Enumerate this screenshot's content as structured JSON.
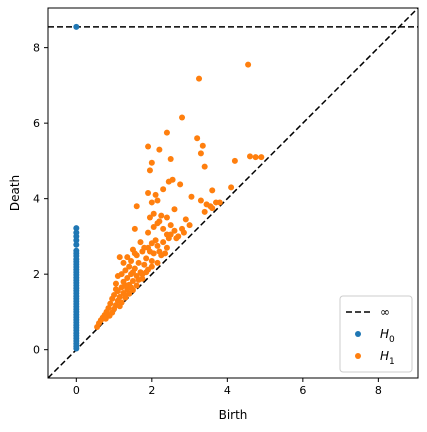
{
  "chart_data": {
    "type": "scatter",
    "title": "",
    "xlabel": "Birth",
    "ylabel": "Death",
    "xlim": [
      -0.75,
      9.05
    ],
    "ylim": [
      -0.75,
      9.05
    ],
    "xticks": [
      0,
      2,
      4,
      6,
      8
    ],
    "yticks": [
      0,
      2,
      4,
      6,
      8
    ],
    "xtick_labels": [
      "0",
      "2",
      "4",
      "6",
      "8"
    ],
    "ytick_labels": [
      "0",
      "2",
      "4",
      "6",
      "8"
    ],
    "grid": false,
    "legend_position": "bottom-right",
    "infinity_death": 8.55,
    "legend": [
      {
        "label": "∞",
        "style": "dashed-line",
        "color": "#000000"
      },
      {
        "label": "H",
        "sub": "0",
        "style": "marker",
        "color": "#1f77b4"
      },
      {
        "label": "H",
        "sub": "1",
        "style": "marker",
        "color": "#ff7f0e"
      }
    ],
    "series": [
      {
        "color": "#1f77b4",
        "points": [
          [
            0,
            8.55
          ],
          [
            0,
            3.22
          ],
          [
            0,
            3.1
          ],
          [
            0,
            3.0
          ],
          [
            0,
            2.9
          ],
          [
            0,
            2.78
          ],
          [
            0,
            2.62
          ],
          [
            0,
            2.55
          ],
          [
            0,
            2.48
          ],
          [
            0,
            2.4
          ],
          [
            0,
            2.33
          ],
          [
            0,
            2.26
          ],
          [
            0,
            2.19
          ],
          [
            0,
            2.12
          ],
          [
            0,
            2.05
          ],
          [
            0,
            1.98
          ],
          [
            0,
            1.91
          ],
          [
            0,
            1.84
          ],
          [
            0,
            1.77
          ],
          [
            0,
            1.7
          ],
          [
            0,
            1.63
          ],
          [
            0,
            1.56
          ],
          [
            0,
            1.49
          ],
          [
            0,
            1.42
          ],
          [
            0,
            1.35
          ],
          [
            0,
            1.28
          ],
          [
            0,
            1.21
          ],
          [
            0,
            1.14
          ],
          [
            0,
            1.07
          ],
          [
            0,
            1.0
          ],
          [
            0,
            0.93
          ],
          [
            0,
            0.86
          ],
          [
            0,
            0.79
          ],
          [
            0,
            0.72
          ],
          [
            0,
            0.65
          ],
          [
            0,
            0.58
          ],
          [
            0,
            0.51
          ],
          [
            0,
            0.44
          ],
          [
            0,
            0.37
          ],
          [
            0,
            0.3
          ],
          [
            0,
            0.23
          ],
          [
            0,
            0.16
          ],
          [
            0,
            0.09
          ],
          [
            0,
            0.03
          ]
        ]
      },
      {
        "color": "#ff7f0e",
        "points": [
          [
            4.55,
            7.55
          ],
          [
            3.25,
            7.18
          ],
          [
            2.8,
            6.15
          ],
          [
            2.4,
            5.75
          ],
          [
            3.2,
            5.6
          ],
          [
            3.35,
            5.4
          ],
          [
            1.9,
            5.38
          ],
          [
            2.2,
            5.3
          ],
          [
            3.3,
            5.2
          ],
          [
            2.5,
            5.05
          ],
          [
            4.2,
            5.0
          ],
          [
            2.0,
            4.95
          ],
          [
            4.6,
            5.12
          ],
          [
            4.75,
            5.1
          ],
          [
            4.9,
            5.1
          ],
          [
            3.4,
            4.85
          ],
          [
            1.95,
            4.75
          ],
          [
            2.55,
            4.5
          ],
          [
            2.45,
            4.45
          ],
          [
            2.75,
            4.38
          ],
          [
            2.3,
            4.25
          ],
          [
            3.6,
            4.22
          ],
          [
            1.9,
            4.15
          ],
          [
            2.1,
            4.1
          ],
          [
            3.05,
            4.05
          ],
          [
            4.1,
            4.3
          ],
          [
            2.15,
            3.95
          ],
          [
            3.3,
            3.95
          ],
          [
            2.0,
            3.9
          ],
          [
            3.45,
            3.85
          ],
          [
            1.6,
            3.8
          ],
          [
            3.55,
            3.8
          ],
          [
            3.7,
            3.9
          ],
          [
            3.8,
            3.9
          ],
          [
            2.6,
            3.72
          ],
          [
            2.05,
            3.6
          ],
          [
            3.4,
            3.65
          ],
          [
            2.25,
            3.55
          ],
          [
            1.95,
            3.5
          ],
          [
            2.2,
            3.4
          ],
          [
            2.4,
            3.5
          ],
          [
            2.9,
            3.45
          ],
          [
            3.6,
            3.75
          ],
          [
            2.15,
            3.35
          ],
          [
            2.5,
            3.3
          ],
          [
            2.05,
            3.25
          ],
          [
            1.55,
            3.2
          ],
          [
            2.3,
            3.2
          ],
          [
            2.6,
            3.15
          ],
          [
            2.8,
            3.2
          ],
          [
            2.4,
            3.05
          ],
          [
            1.9,
            3.1
          ],
          [
            2.45,
            2.95
          ],
          [
            2.65,
            2.95
          ],
          [
            2.1,
            2.9
          ],
          [
            2.3,
            2.85
          ],
          [
            1.7,
            2.85
          ],
          [
            2.0,
            2.82
          ],
          [
            2.15,
            2.75
          ],
          [
            2.4,
            2.7
          ],
          [
            1.9,
            2.7
          ],
          [
            1.5,
            2.65
          ],
          [
            1.75,
            2.6
          ],
          [
            2.05,
            2.55
          ],
          [
            2.25,
            2.5
          ],
          [
            1.15,
            2.45
          ],
          [
            1.6,
            2.5
          ],
          [
            1.85,
            2.42
          ],
          [
            1.45,
            2.35
          ],
          [
            2.0,
            2.35
          ],
          [
            2.15,
            2.3
          ],
          [
            1.65,
            2.3
          ],
          [
            1.8,
            2.25
          ],
          [
            1.4,
            2.2
          ],
          [
            1.55,
            2.15
          ],
          [
            1.9,
            2.12
          ],
          [
            1.3,
            2.1
          ],
          [
            1.7,
            2.05
          ],
          [
            1.45,
            2.0
          ],
          [
            1.2,
            2.0
          ],
          [
            1.6,
            1.95
          ],
          [
            1.35,
            1.9
          ],
          [
            1.75,
            1.88
          ],
          [
            1.5,
            1.82
          ],
          [
            1.25,
            1.8
          ],
          [
            1.05,
            1.75
          ],
          [
            1.4,
            1.72
          ],
          [
            1.6,
            1.7
          ],
          [
            1.2,
            1.65
          ],
          [
            1.35,
            1.6
          ],
          [
            1.5,
            1.58
          ],
          [
            1.1,
            1.55
          ],
          [
            1.25,
            1.5
          ],
          [
            1.4,
            1.48
          ],
          [
            1.0,
            1.45
          ],
          [
            1.15,
            1.4
          ],
          [
            1.3,
            1.38
          ],
          [
            0.95,
            1.35
          ],
          [
            1.1,
            1.3
          ],
          [
            1.2,
            1.25
          ],
          [
            0.9,
            1.22
          ],
          [
            1.05,
            1.18
          ],
          [
            1.15,
            1.15
          ],
          [
            0.85,
            1.1
          ],
          [
            1.0,
            1.08
          ],
          [
            0.8,
            1.0
          ],
          [
            0.95,
            0.98
          ],
          [
            0.75,
            0.92
          ],
          [
            0.88,
            0.9
          ],
          [
            0.7,
            0.85
          ],
          [
            0.65,
            0.78
          ],
          [
            0.78,
            0.82
          ],
          [
            0.6,
            0.7
          ],
          [
            0.55,
            0.6
          ],
          [
            1.25,
            2.3
          ],
          [
            1.35,
            2.45
          ],
          [
            1.55,
            2.55
          ],
          [
            1.8,
            2.7
          ],
          [
            2.5,
            3.05
          ],
          [
            2.7,
            3.0
          ],
          [
            2.85,
            3.1
          ],
          [
            3.0,
            3.3
          ],
          [
            1.85,
            2.05
          ],
          [
            2.0,
            2.2
          ],
          [
            1.65,
            1.85
          ],
          [
            1.45,
            1.65
          ],
          [
            1.3,
            1.45
          ],
          [
            1.75,
            2.0
          ],
          [
            1.95,
            2.6
          ],
          [
            2.2,
            2.6
          ],
          [
            2.35,
            2.55
          ],
          [
            1.05,
            1.6
          ],
          [
            1.3,
            1.7
          ],
          [
            1.5,
            2.05
          ],
          [
            1.1,
            1.95
          ]
        ]
      }
    ]
  }
}
